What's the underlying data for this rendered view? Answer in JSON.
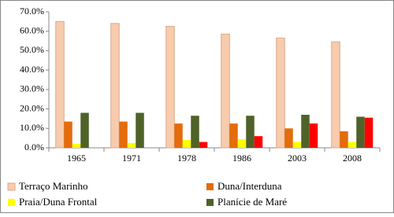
{
  "chart_data": {
    "type": "bar",
    "categories": [
      "1965",
      "1971",
      "1978",
      "1986",
      "2003",
      "2008"
    ],
    "series": [
      {
        "name": "Terraço Marinho",
        "color": "#f8cbad",
        "values": [
          65,
          64,
          62.5,
          58.5,
          56.5,
          54.5
        ]
      },
      {
        "name": "Duna/Interduna",
        "color": "#e46c0a",
        "values": [
          13.5,
          13.5,
          12.5,
          12.5,
          10,
          8.5
        ]
      },
      {
        "name": "Praia/Duna Frontal",
        "color": "#ffff00",
        "values": [
          2,
          2.5,
          4,
          4.5,
          3,
          3
        ]
      },
      {
        "name": "Planície de Maré",
        "color": "#4f6228",
        "values": [
          18,
          18,
          16.5,
          16.5,
          17,
          16
        ]
      },
      {
        "color": "#ff0000",
        "values": [
          null,
          null,
          3,
          6,
          12.5,
          15.5
        ]
      }
    ],
    "ylim": [
      0,
      70
    ],
    "yticks": [
      {
        "value": 0,
        "label": "0.0%"
      },
      {
        "value": 10,
        "label": "10.0%"
      },
      {
        "value": 20,
        "label": "20.0%"
      },
      {
        "value": 30,
        "label": "30.0%"
      },
      {
        "value": 40,
        "label": "40.0%"
      },
      {
        "value": 50,
        "label": "50.0%"
      },
      {
        "value": 60,
        "label": "60.0%"
      },
      {
        "value": 70,
        "label": "70.0%"
      }
    ]
  }
}
